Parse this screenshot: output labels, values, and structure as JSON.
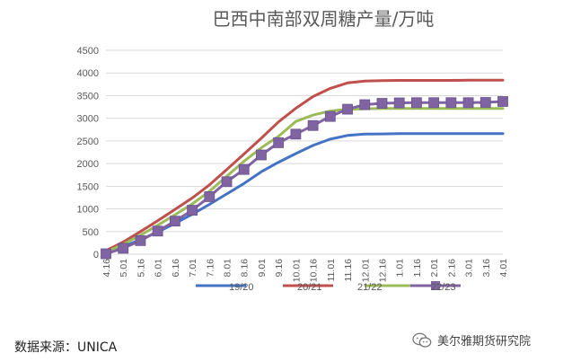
{
  "chart_data": {
    "type": "line",
    "title": "巴西中南部双周糖产量/万吨",
    "categories": [
      "4.16",
      "5.01",
      "5.16",
      "6.01",
      "6.16",
      "7.01",
      "7.16",
      "8.01",
      "8.16",
      "9.01",
      "9.16",
      "10.01",
      "10.16",
      "11.01",
      "11.16",
      "12.01",
      "12.16",
      "1.01",
      "1.16",
      "2.01",
      "2.16",
      "3.01",
      "3.16",
      "4.01"
    ],
    "ylim": [
      0,
      4500
    ],
    "yticks": [
      0,
      500,
      1000,
      1500,
      2000,
      2500,
      3000,
      3500,
      4000,
      4500
    ],
    "grid": true,
    "legend_position": "bottom",
    "series": [
      {
        "name": "19/20",
        "color": "#4472C4",
        "marker": "none",
        "values": [
          50,
          170,
          320,
          490,
          680,
          880,
          1100,
          1330,
          1560,
          1820,
          2030,
          2220,
          2400,
          2540,
          2620,
          2650,
          2655,
          2660,
          2660,
          2660,
          2660,
          2660,
          2660,
          2660
        ]
      },
      {
        "name": "20/21",
        "color": "#C0504D",
        "marker": "none",
        "values": [
          80,
          270,
          500,
          740,
          990,
          1240,
          1530,
          1870,
          2210,
          2560,
          2920,
          3220,
          3480,
          3660,
          3780,
          3820,
          3830,
          3835,
          3835,
          3835,
          3835,
          3840,
          3840,
          3840
        ]
      },
      {
        "name": "21/22",
        "color": "#9BBB59",
        "marker": "none",
        "values": [
          50,
          220,
          420,
          640,
          870,
          1110,
          1390,
          1720,
          2050,
          2350,
          2600,
          2930,
          3070,
          3160,
          3200,
          3210,
          3215,
          3215,
          3215,
          3215,
          3215,
          3215,
          3215,
          3215
        ]
      },
      {
        "name": "22/23",
        "color": "#8064A2",
        "marker": "square",
        "values": [
          10,
          130,
          300,
          510,
          730,
          970,
          1270,
          1600,
          1870,
          2190,
          2460,
          2650,
          2840,
          3040,
          3200,
          3300,
          3330,
          3340,
          3345,
          3345,
          3345,
          3345,
          3350,
          3370
        ]
      }
    ]
  },
  "footer": {
    "source": "数据来源：UNICA",
    "watermark": "美尔雅期货研究院"
  }
}
